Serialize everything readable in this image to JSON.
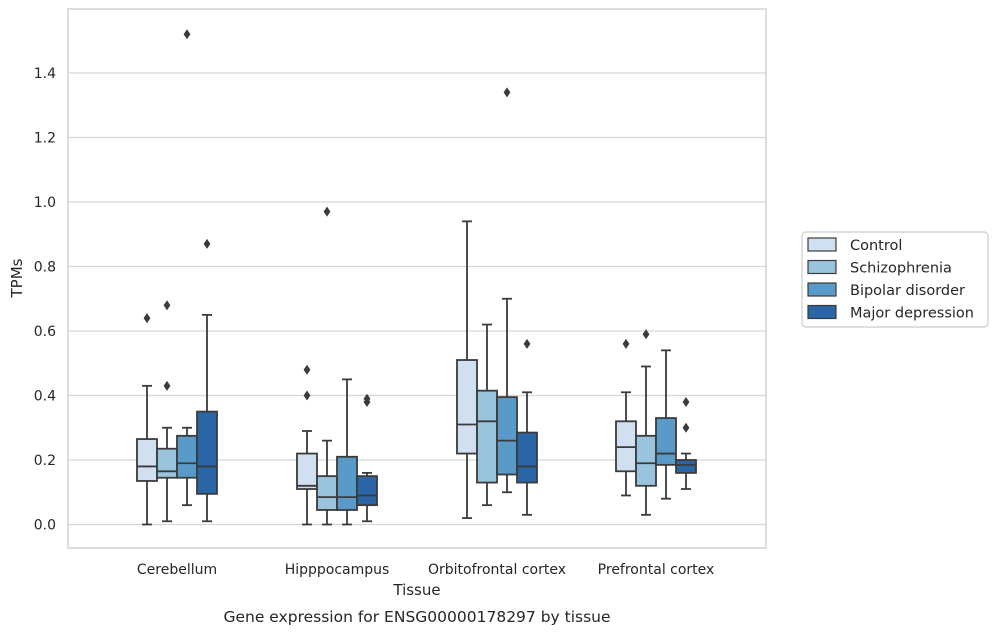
{
  "chart_data": {
    "type": "boxplot",
    "caption": "Gene expression for ENSG00000178297 by tissue",
    "xlabel": "Tissue",
    "ylabel": "TPMs",
    "ylim": [
      -0.07,
      1.6
    ],
    "yticks": [
      "0.0",
      "0.2",
      "0.4",
      "0.6",
      "0.8",
      "1.0",
      "1.2",
      "1.4"
    ],
    "grid": "horizontal",
    "legend_position": "right",
    "categories": [
      "Cerebellum",
      "Hipppocampus",
      "Orbitofrontal cortex",
      "Prefrontal cortex"
    ],
    "series": [
      {
        "name": "Control",
        "color": "#d0e0f0",
        "boxes": [
          {
            "whisker_low": 0.0,
            "q1": 0.135,
            "median": 0.18,
            "q3": 0.265,
            "whisker_high": 0.43,
            "outliers": [
              0.64
            ]
          },
          {
            "whisker_low": 0.0,
            "q1": 0.11,
            "median": 0.12,
            "q3": 0.22,
            "whisker_high": 0.29,
            "outliers": [
              0.4,
              0.48
            ]
          },
          {
            "whisker_low": 0.02,
            "q1": 0.22,
            "median": 0.31,
            "q3": 0.51,
            "whisker_high": 0.94,
            "outliers": []
          },
          {
            "whisker_low": 0.09,
            "q1": 0.165,
            "median": 0.24,
            "q3": 0.32,
            "whisker_high": 0.41,
            "outliers": [
              0.56
            ]
          }
        ]
      },
      {
        "name": "Schizophrenia",
        "color": "#9ac3de",
        "boxes": [
          {
            "whisker_low": 0.01,
            "q1": 0.145,
            "median": 0.165,
            "q3": 0.235,
            "whisker_high": 0.3,
            "outliers": [
              0.43,
              0.68
            ]
          },
          {
            "whisker_low": 0.0,
            "q1": 0.045,
            "median": 0.085,
            "q3": 0.15,
            "whisker_high": 0.26,
            "outliers": [
              0.97
            ]
          },
          {
            "whisker_low": 0.06,
            "q1": 0.13,
            "median": 0.32,
            "q3": 0.415,
            "whisker_high": 0.62,
            "outliers": []
          },
          {
            "whisker_low": 0.03,
            "q1": 0.12,
            "median": 0.19,
            "q3": 0.275,
            "whisker_high": 0.49,
            "outliers": [
              0.59
            ]
          }
        ]
      },
      {
        "name": "Bipolar disorder",
        "color": "#5a9ac9",
        "boxes": [
          {
            "whisker_low": 0.06,
            "q1": 0.145,
            "median": 0.19,
            "q3": 0.275,
            "whisker_high": 0.3,
            "outliers": [
              1.52
            ]
          },
          {
            "whisker_low": 0.0,
            "q1": 0.045,
            "median": 0.085,
            "q3": 0.21,
            "whisker_high": 0.45,
            "outliers": []
          },
          {
            "whisker_low": 0.1,
            "q1": 0.155,
            "median": 0.26,
            "q3": 0.395,
            "whisker_high": 0.7,
            "outliers": [
              1.34
            ]
          },
          {
            "whisker_low": 0.08,
            "q1": 0.185,
            "median": 0.22,
            "q3": 0.33,
            "whisker_high": 0.54,
            "outliers": []
          }
        ]
      },
      {
        "name": "Major depression",
        "color": "#2a66a6",
        "boxes": [
          {
            "whisker_low": 0.01,
            "q1": 0.095,
            "median": 0.18,
            "q3": 0.35,
            "whisker_high": 0.65,
            "outliers": [
              0.87
            ]
          },
          {
            "whisker_low": 0.01,
            "q1": 0.06,
            "median": 0.09,
            "q3": 0.15,
            "whisker_high": 0.16,
            "outliers": [
              0.38,
              0.39
            ]
          },
          {
            "whisker_low": 0.03,
            "q1": 0.13,
            "median": 0.18,
            "q3": 0.285,
            "whisker_high": 0.41,
            "outliers": [
              0.56
            ]
          },
          {
            "whisker_low": 0.11,
            "q1": 0.16,
            "median": 0.185,
            "q3": 0.2,
            "whisker_high": 0.22,
            "outliers": [
              0.3,
              0.38
            ]
          }
        ]
      }
    ]
  }
}
